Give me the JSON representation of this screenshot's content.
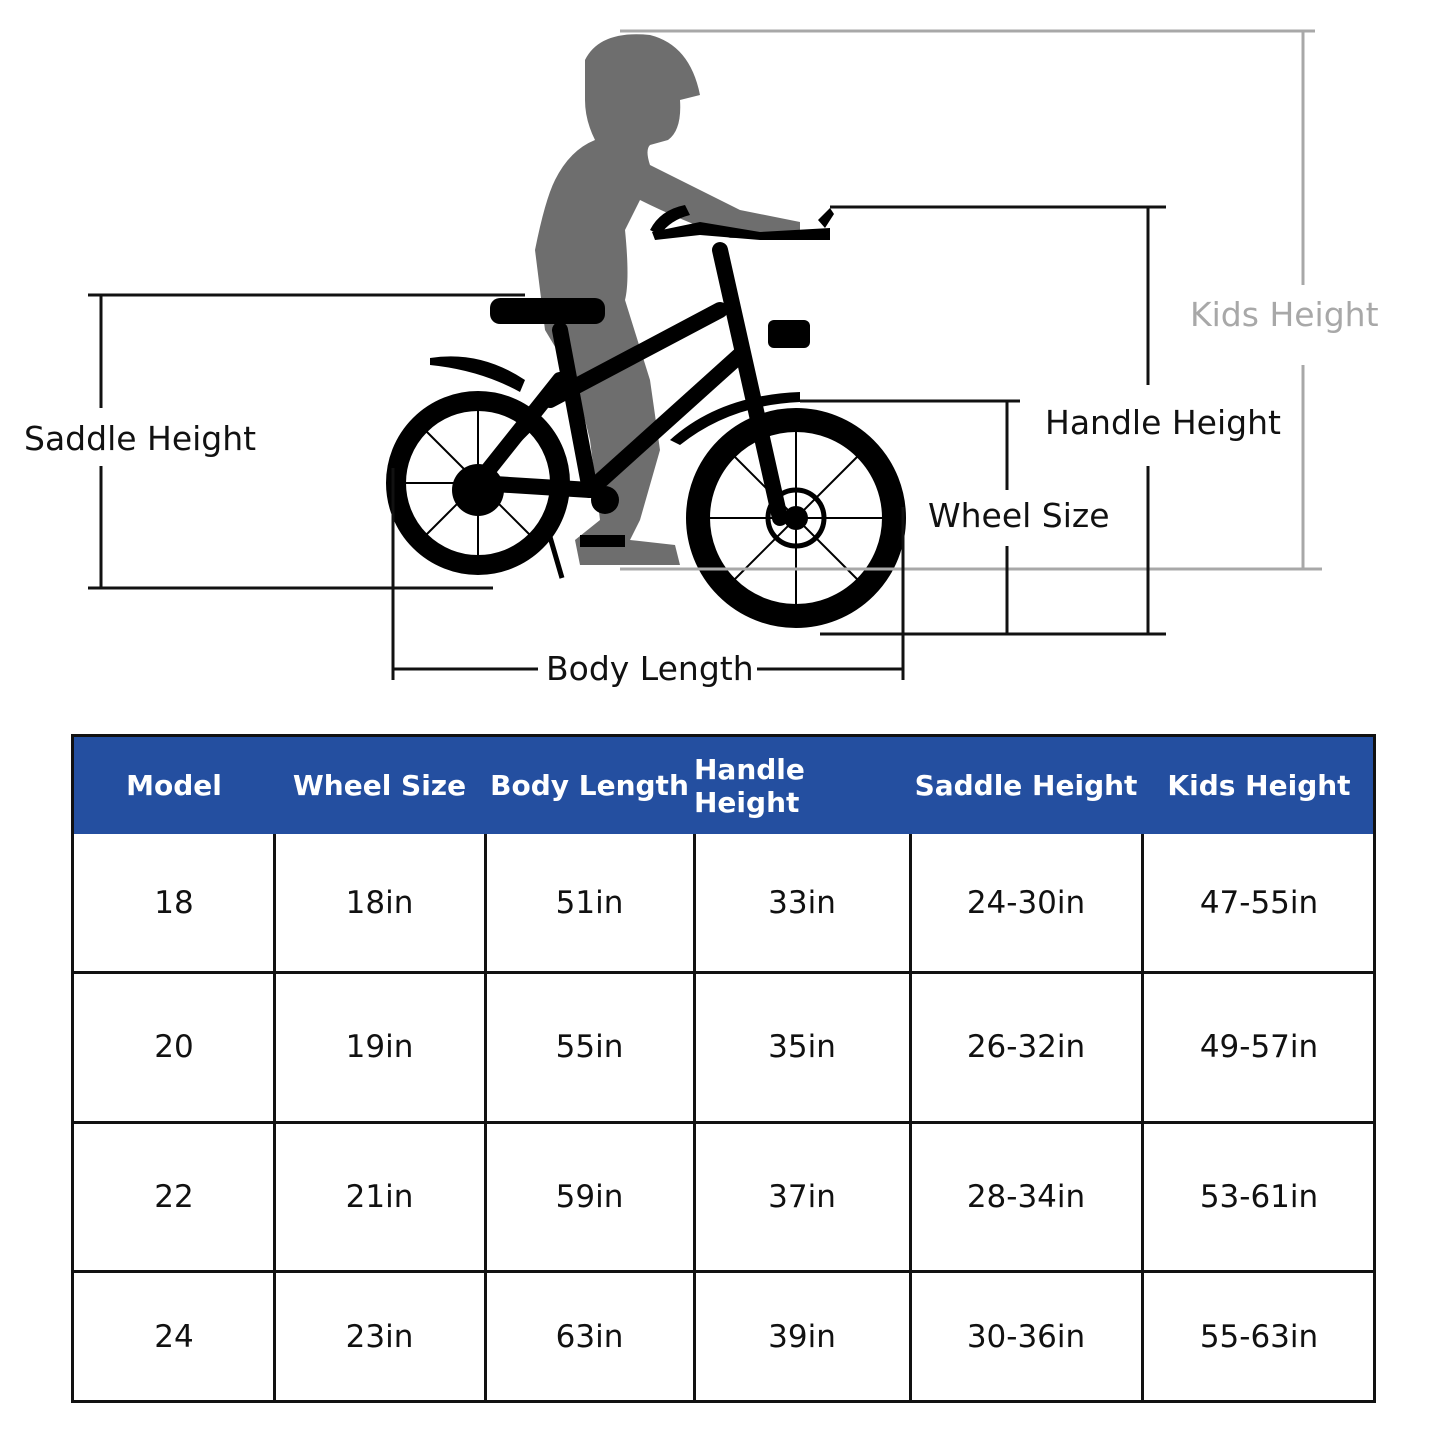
{
  "diagram": {
    "labels": {
      "kids_height": "Kids Height",
      "handle_height": "Handle Height",
      "wheel_size": "Wheel Size",
      "saddle_height": "Saddle Height",
      "body_length": "Body Length"
    },
    "colors": {
      "rider": "#6e6e6e",
      "bike": "#000000",
      "kids_line": "#a8a8a8"
    }
  },
  "table": {
    "header_color": "#244fa0",
    "columns": [
      "Model",
      "Wheel Size",
      "Body Length",
      "Handle Height",
      "Saddle Height",
      "Kids Height"
    ],
    "rows": [
      [
        "18",
        "18in",
        "51in",
        "33in",
        "24-30in",
        "47-55in"
      ],
      [
        "20",
        "19in",
        "55in",
        "35in",
        "26-32in",
        "49-57in"
      ],
      [
        "22",
        "21in",
        "59in",
        "37in",
        "28-34in",
        "53-61in"
      ],
      [
        "24",
        "23in",
        "63in",
        "39in",
        "30-36in",
        "55-63in"
      ]
    ]
  }
}
